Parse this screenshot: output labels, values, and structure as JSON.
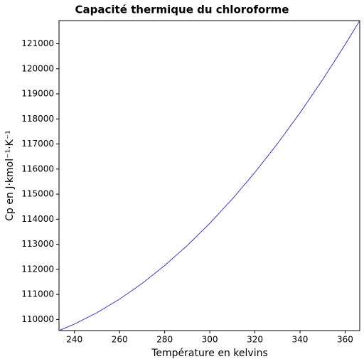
{
  "chart_data": {
    "type": "line",
    "title": "Capacité thermique du chloroforme",
    "x_label": "Température en kelvins",
    "y_label": "Cp en J·kmol⁻¹·K⁻¹",
    "x": [
      233.15,
      240,
      250,
      260,
      270,
      280,
      290,
      300,
      310,
      320,
      330,
      340,
      350,
      360,
      366.48
    ],
    "series": [
      {
        "name": "Cp",
        "color": "#3b3bb3",
        "values": [
          109556,
          109817,
          110271,
          110811,
          111438,
          112151,
          112950,
          113836,
          114808,
          115867,
          117012,
          118244,
          119562,
          120967,
          121922
        ]
      }
    ],
    "xlim": [
      233.15,
      366.48
    ],
    "ylim": [
      109556,
      121922
    ],
    "xticks": [
      240,
      260,
      280,
      300,
      320,
      340,
      360
    ],
    "yticks": [
      110000,
      111000,
      112000,
      113000,
      114000,
      115000,
      116000,
      117000,
      118000,
      119000,
      120000,
      121000
    ],
    "grid": false
  }
}
